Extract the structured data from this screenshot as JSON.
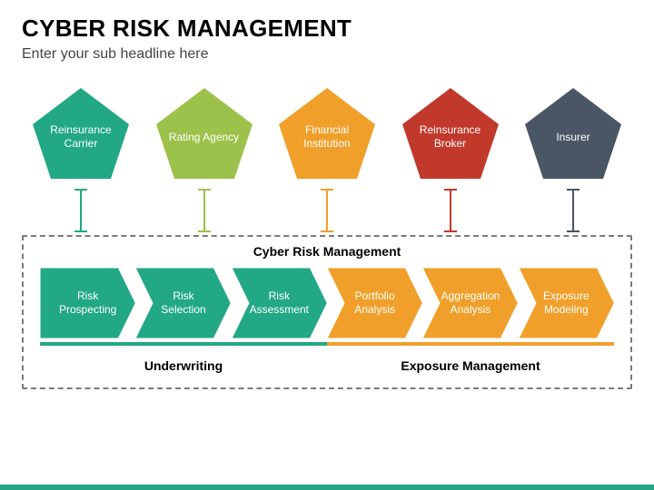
{
  "title": "Cyber Risk Management",
  "subtitle": "Enter your sub headline here",
  "title_color": "#222222",
  "subtitle_color": "#555555",
  "pentagons": [
    {
      "label": "Reinsurance Carrier",
      "fill": "#22a884"
    },
    {
      "label": "Rating Agency",
      "fill": "#9dc24c"
    },
    {
      "label": "Financial Institution",
      "fill": "#f0a02a"
    },
    {
      "label": "Reinsurance Broker",
      "fill": "#c1392b"
    },
    {
      "label": "Insurer",
      "fill": "#4a5565"
    }
  ],
  "connector": {
    "length": 46,
    "cap_width": 14,
    "stroke_width": 2
  },
  "box": {
    "title": "Cyber Risk Management",
    "chevrons": [
      {
        "label": "Risk Prospecting",
        "fill": "#22a884",
        "group": 0
      },
      {
        "label": "Risk Selection",
        "fill": "#22a884",
        "group": 0
      },
      {
        "label": "Risk Assessment",
        "fill": "#22a884",
        "group": 0
      },
      {
        "label": "Portfolio Analysis",
        "fill": "#f0a02a",
        "group": 1
      },
      {
        "label": "Aggregation Analysis",
        "fill": "#f0a02a",
        "group": 1
      },
      {
        "label": "Exposure Modeling",
        "fill": "#f0a02a",
        "group": 1
      }
    ],
    "groups": [
      {
        "label": "Underwriting",
        "color": "#22a884"
      },
      {
        "label": "Exposure Management",
        "color": "#f0a02a"
      }
    ],
    "underline_height": 4
  },
  "footer_color": "#22a884",
  "background_color": "#ffffff",
  "label_fontsize": 12,
  "label_font_color": "#ffffff",
  "group_fontsize": 14,
  "chevron_notch": 18,
  "chevron_gap_stroke": "#ffffff"
}
